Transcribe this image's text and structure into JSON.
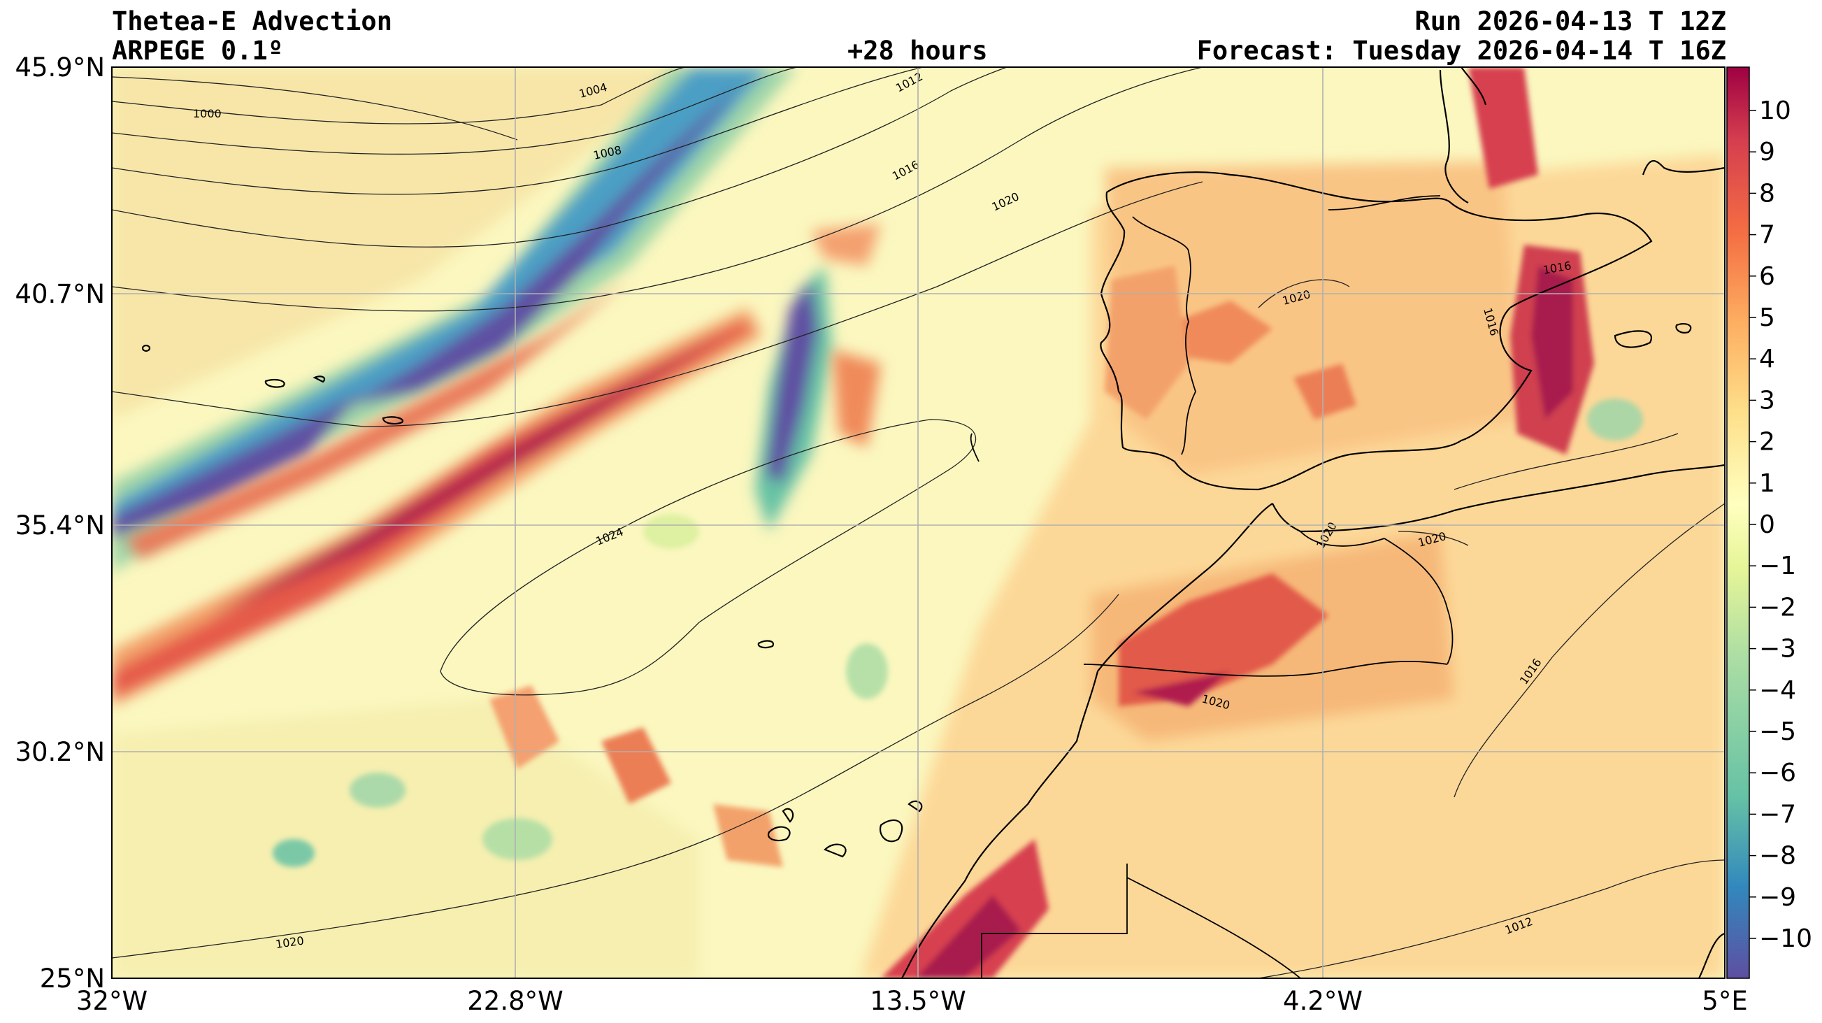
{
  "header": {
    "title": "Thetea-E Advection",
    "model": "ARPEGE 0.1º",
    "lead": "+28 hours",
    "run": "Run 2026-04-13 T 12Z",
    "forecast": "Forecast: Tuesday 2026-04-14 T 16Z"
  },
  "map": {
    "lon_ticks": [
      "32°W",
      "22.8°W",
      "13.5°W",
      "4.2°W",
      "5°E"
    ],
    "lat_ticks": [
      "45.9°N",
      "40.7°N",
      "35.4°N",
      "30.2°N",
      "25°N"
    ],
    "extent": {
      "lon_min": -32,
      "lon_max": 5,
      "lat_min": 25,
      "lat_max": 45.9
    },
    "gridlines": true
  },
  "isobars": {
    "labels": [
      "1000",
      "1004",
      "1008",
      "1012",
      "1016",
      "1020",
      "1020",
      "1020",
      "1020",
      "1020",
      "1016",
      "1016",
      "1016",
      "1024",
      "1020",
      "1012"
    ]
  },
  "colorbar": {
    "ticks": [
      "10",
      "9",
      "8",
      "7",
      "6",
      "5",
      "4",
      "3",
      "2",
      "1",
      "0",
      "−1",
      "−2",
      "−3",
      "−4",
      "−5",
      "−6",
      "−7",
      "−8",
      "−9",
      "−10"
    ],
    "colors": [
      "#5e4fa2",
      "#3288bd",
      "#66c2a5",
      "#abdda4",
      "#e6f598",
      "#ffffbf",
      "#fee08b",
      "#fdae61",
      "#f46d43",
      "#d53e4f",
      "#9e0142"
    ]
  }
}
